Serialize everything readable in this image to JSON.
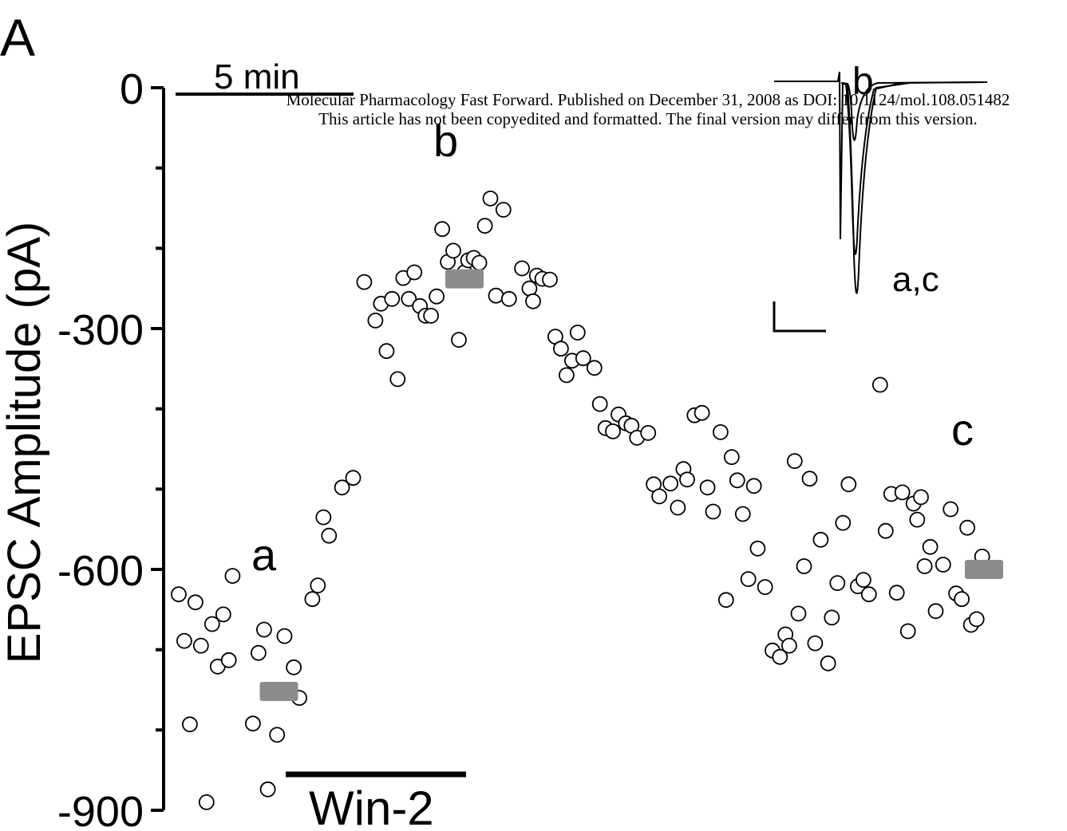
{
  "panel_label": "A",
  "watermark": {
    "line1": "Molecular Pharmacology Fast Forward. Published on December 31, 2008 as DOI: 10.1124/mol.108.051482",
    "line2": "This article has not been copyedited and formatted. The final version may differ from this version."
  },
  "scale_bar_label": "5 min",
  "drug_label": "Win-2",
  "chart_data": {
    "type": "scatter",
    "title": "",
    "xlabel": "",
    "ylabel": "EPSC Amplitude (pA)",
    "ylim": [
      -900,
      0
    ],
    "xlim": [
      0,
      23
    ],
    "yticks": [
      0,
      -300,
      -600,
      -900
    ],
    "ytick_labels": [
      "0",
      "-300",
      "-600",
      "-900"
    ],
    "x_units": "min",
    "grid": false,
    "drug_application_min": [
      3.3,
      8.3
    ],
    "series": [
      {
        "marker": "open-circle",
        "points": [
          [
            0.3,
            -631
          ],
          [
            0.45,
            -689
          ],
          [
            0.6,
            -793
          ],
          [
            0.75,
            -641
          ],
          [
            0.9,
            -695
          ],
          [
            1.05,
            -890
          ],
          [
            1.2,
            -668
          ],
          [
            1.35,
            -721
          ],
          [
            1.5,
            -656
          ],
          [
            1.65,
            -713
          ],
          [
            1.75,
            -608
          ],
          [
            2.3,
            -792
          ],
          [
            2.45,
            -704
          ],
          [
            2.6,
            -675
          ],
          [
            2.7,
            -874
          ],
          [
            2.95,
            -806
          ],
          [
            3.15,
            -683
          ],
          [
            3.4,
            -722
          ],
          [
            3.55,
            -760
          ],
          [
            3.9,
            -637
          ],
          [
            4.05,
            -620
          ],
          [
            4.2,
            -535
          ],
          [
            4.35,
            -558
          ],
          [
            4.7,
            -498
          ],
          [
            5.0,
            -486
          ],
          [
            5.3,
            -242
          ],
          [
            5.6,
            -290
          ],
          [
            5.75,
            -269
          ],
          [
            5.9,
            -328
          ],
          [
            6.05,
            -263
          ],
          [
            6.2,
            -363
          ],
          [
            6.35,
            -237
          ],
          [
            6.5,
            -263
          ],
          [
            6.65,
            -230
          ],
          [
            6.8,
            -272
          ],
          [
            6.95,
            -284
          ],
          [
            7.1,
            -284
          ],
          [
            7.25,
            -260
          ],
          [
            7.4,
            -176
          ],
          [
            7.55,
            -217
          ],
          [
            7.7,
            -203
          ],
          [
            7.85,
            -314
          ],
          [
            8.0,
            -230
          ],
          [
            8.1,
            -215
          ],
          [
            8.25,
            -212
          ],
          [
            8.4,
            -218
          ],
          [
            8.55,
            -172
          ],
          [
            8.7,
            -138
          ],
          [
            8.85,
            -259
          ],
          [
            9.05,
            -152
          ],
          [
            9.2,
            -263
          ],
          [
            9.55,
            -225
          ],
          [
            9.75,
            -250
          ],
          [
            9.85,
            -266
          ],
          [
            9.95,
            -234
          ],
          [
            10.1,
            -238
          ],
          [
            10.3,
            -239
          ],
          [
            10.45,
            -310
          ],
          [
            10.6,
            -325
          ],
          [
            10.75,
            -358
          ],
          [
            10.9,
            -340
          ],
          [
            11.05,
            -305
          ],
          [
            11.2,
            -337
          ],
          [
            11.5,
            -349
          ],
          [
            11.65,
            -394
          ],
          [
            11.8,
            -424
          ],
          [
            12.0,
            -428
          ],
          [
            12.15,
            -407
          ],
          [
            12.35,
            -418
          ],
          [
            12.5,
            -421
          ],
          [
            12.65,
            -436
          ],
          [
            12.95,
            -430
          ],
          [
            13.1,
            -494
          ],
          [
            13.25,
            -509
          ],
          [
            13.55,
            -493
          ],
          [
            13.75,
            -523
          ],
          [
            13.9,
            -475
          ],
          [
            14.0,
            -488
          ],
          [
            14.2,
            -408
          ],
          [
            14.4,
            -405
          ],
          [
            14.55,
            -498
          ],
          [
            14.7,
            -528
          ],
          [
            14.9,
            -429
          ],
          [
            15.05,
            -638
          ],
          [
            15.2,
            -460
          ],
          [
            15.35,
            -489
          ],
          [
            15.5,
            -531
          ],
          [
            15.65,
            -612
          ],
          [
            15.8,
            -496
          ],
          [
            15.9,
            -574
          ],
          [
            16.1,
            -622
          ],
          [
            16.3,
            -701
          ],
          [
            16.5,
            -709
          ],
          [
            16.65,
            -681
          ],
          [
            16.75,
            -695
          ],
          [
            16.9,
            -465
          ],
          [
            17.0,
            -655
          ],
          [
            17.15,
            -596
          ],
          [
            17.3,
            -487
          ],
          [
            17.45,
            -692
          ],
          [
            17.6,
            -563
          ],
          [
            17.8,
            -717
          ],
          [
            17.9,
            -660
          ],
          [
            18.05,
            -617
          ],
          [
            18.2,
            -542
          ],
          [
            18.35,
            -494
          ],
          [
            18.6,
            -621
          ],
          [
            18.75,
            -613
          ],
          [
            18.9,
            -631
          ],
          [
            19.2,
            -370
          ],
          [
            19.35,
            -552
          ],
          [
            19.5,
            -506
          ],
          [
            19.65,
            -629
          ],
          [
            19.8,
            -504
          ],
          [
            19.95,
            -677
          ],
          [
            20.1,
            -518
          ],
          [
            20.2,
            -538
          ],
          [
            20.3,
            -510
          ],
          [
            20.4,
            -596
          ],
          [
            20.55,
            -572
          ],
          [
            20.7,
            -652
          ],
          [
            20.9,
            -594
          ],
          [
            21.1,
            -525
          ],
          [
            21.25,
            -630
          ],
          [
            21.4,
            -637
          ],
          [
            21.55,
            -548
          ],
          [
            21.65,
            -669
          ],
          [
            21.8,
            -662
          ],
          [
            21.95,
            -584
          ]
        ]
      }
    ],
    "mean_bars": [
      {
        "label": "a",
        "x_center": 3.0,
        "y": -752,
        "color": "#8c8c8c"
      },
      {
        "label": "b",
        "x_center": 8.0,
        "y": -238,
        "color": "#8c8c8c"
      },
      {
        "label": "c",
        "x_center": 22.0,
        "y": -600,
        "color": "#8c8c8c"
      }
    ],
    "labels": [
      {
        "text": "a"
      },
      {
        "text": "b"
      },
      {
        "text": "c"
      }
    ],
    "inset": {
      "description_labels": [
        "b",
        "a,c"
      ],
      "trace_color": "#000000"
    }
  }
}
